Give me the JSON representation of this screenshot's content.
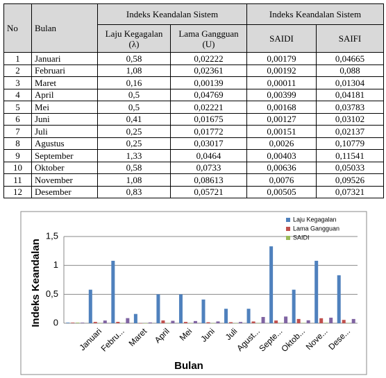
{
  "table": {
    "header": {
      "no": "No",
      "bulan": "Bulan",
      "group_1": "Indeks Keandalan Sistem",
      "group_2": "Indeks Keandalan Sistem",
      "columns": [
        "Laju Kegagalan (λ)",
        "Lama Gangguan (U)",
        "SAIDI",
        "SAIFI"
      ]
    },
    "rows": [
      [
        "1",
        "Januari",
        "0,58",
        "0,02222",
        "0,00179",
        "0,04665"
      ],
      [
        "2",
        "Februari",
        "1,08",
        "0,02361",
        "0,00192",
        "0,088"
      ],
      [
        "3",
        "Maret",
        "0,16",
        "0,00139",
        "0,00011",
        "0,01304"
      ],
      [
        "4",
        "April",
        "0,5",
        "0,04769",
        "0,00399",
        "0,04181"
      ],
      [
        "5",
        "Mei",
        "0,5",
        "0,02221",
        "0,00168",
        "0,03783"
      ],
      [
        "6",
        "Juni",
        "0,41",
        "0,01675",
        "0,00127",
        "0,03102"
      ],
      [
        "7",
        "Juli",
        "0,25",
        "0,01772",
        "0,00151",
        "0,02137"
      ],
      [
        "8",
        "Agustus",
        "0,25",
        "0,03017",
        "0,0026",
        "0,10779"
      ],
      [
        "9",
        "September",
        "1,33",
        "0,0464",
        "0,00403",
        "0,11541"
      ],
      [
        "10",
        "Oktober",
        "0,58",
        "0,0733",
        "0,00636",
        "0,05033"
      ],
      [
        "11",
        "November",
        "1,08",
        "0,08613",
        "0,0076",
        "0,09526"
      ],
      [
        "12",
        "Desember",
        "0,83",
        "0,05721",
        "0,00505",
        "0,07321"
      ]
    ]
  },
  "chart_data": {
    "type": "bar",
    "y_label": "Indeks Keandalan",
    "x_label": "Bulan",
    "categories": [
      null,
      "Januari",
      "Febru...",
      "Maret",
      "April",
      "Mei",
      "Juni",
      "Juli",
      "Agust...",
      "Septe...",
      "Oktob...",
      "Nove...",
      "Dese..."
    ],
    "series": [
      {
        "name": "Laju Kegagalan",
        "color": "#4f81bd",
        "values": [
          0.01,
          0.58,
          1.08,
          0.16,
          0.5,
          0.5,
          0.41,
          0.25,
          0.25,
          1.33,
          0.58,
          1.08,
          0.83
        ]
      },
      {
        "name": "Lama Gangguan",
        "color": "#c0504d",
        "values": [
          0.01,
          0.02222,
          0.02361,
          0.00139,
          0.04769,
          0.02221,
          0.01675,
          0.01772,
          0.03017,
          0.0464,
          0.0733,
          0.08613,
          0.05721
        ]
      },
      {
        "name": "SAIDI",
        "color": "#9bbb59",
        "values": [
          0.01,
          0.00179,
          0.00192,
          0.00011,
          0.00399,
          0.00168,
          0.00127,
          0.00151,
          0.0026,
          0.00403,
          0.00636,
          0.0076,
          0.00505
        ]
      },
      {
        "color": "#8064a2",
        "values": [
          0.01,
          0.04665,
          0.088,
          0.01304,
          0.04181,
          0.03783,
          0.03102,
          0.02137,
          0.10779,
          0.11541,
          0.05033,
          0.09526,
          0.07321
        ]
      }
    ],
    "ylim": [
      0,
      1.5
    ],
    "yticks": [
      0,
      {
        "value": 0.5,
        "label": "0,5"
      },
      1,
      {
        "value": 1.5,
        "label": "1,5"
      }
    ],
    "grid": true,
    "legend": "top-right"
  }
}
